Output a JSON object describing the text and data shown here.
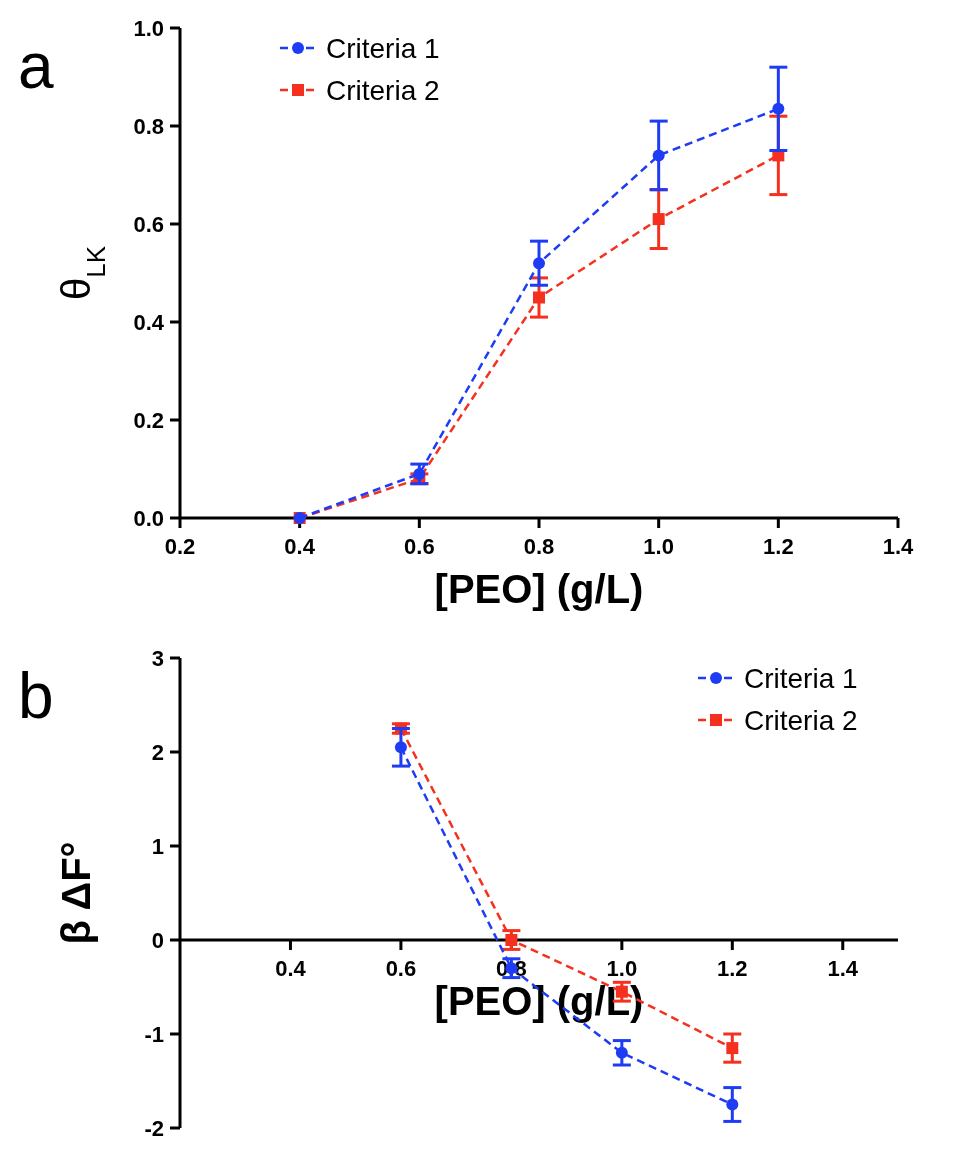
{
  "chart_data": [
    {
      "type": "line",
      "title": "a",
      "xlabel": "[PEO] (g/L)",
      "ylabel": "θ$_{LK}$",
      "x": [
        0.4,
        0.6,
        0.8,
        1.0,
        1.2
      ],
      "xlim": [
        0.2,
        1.4
      ],
      "xticks": [
        {
          "value": 0.2,
          "label": "0.2"
        },
        {
          "value": 0.4,
          "label": "0.4"
        },
        {
          "value": 0.6,
          "label": "0.6"
        },
        {
          "value": 0.8,
          "label": "0.8"
        },
        {
          "value": 1.0,
          "label": "1.0"
        },
        {
          "value": 1.2,
          "label": "1.2"
        },
        {
          "value": 1.4,
          "label": "1.4"
        }
      ],
      "ylim": [
        0,
        1.0
      ],
      "yticks": [
        {
          "value": 0,
          "label": "0.0"
        },
        {
          "value": 0.2,
          "label": "0.2"
        },
        {
          "value": 0.4,
          "label": "0.4"
        },
        {
          "value": 0.6,
          "label": "0.6"
        },
        {
          "value": 0.8,
          "label": "0.8"
        },
        {
          "value": 1.0,
          "label": "1.0"
        }
      ],
      "legend": "top left",
      "line_style": "dashed",
      "series": [
        {
          "name": "Criteria 1",
          "color": "#1f3cf5",
          "marker": "circle",
          "values": [
            0,
            0.09,
            0.52,
            0.74,
            0.835
          ],
          "errors": [
            null,
            0.02,
            0.045,
            0.07,
            0.085
          ]
        },
        {
          "name": "Criteria 2",
          "color": "#f5301f",
          "marker": "square",
          "values": [
            0,
            0.08,
            0.45,
            0.61,
            0.74
          ],
          "errors": [
            null,
            0.01,
            0.04,
            0.06,
            0.08
          ]
        }
      ]
    },
    {
      "type": "line",
      "title": "b",
      "xlabel": "[PEO] (g/L)",
      "ylabel": "β ΔF°",
      "x": [
        0.6,
        0.8,
        1.0,
        1.2
      ],
      "xlim": [
        0.2,
        1.5
      ],
      "xticks": [
        {
          "value": 0.4,
          "label": "0.4"
        },
        {
          "value": 0.6,
          "label": "0.6"
        },
        {
          "value": 0.8,
          "label": "0.8"
        },
        {
          "value": 1.0,
          "label": "1.0"
        },
        {
          "value": 1.2,
          "label": "1.2"
        },
        {
          "value": 1.4,
          "label": "1.4"
        }
      ],
      "ylim": [
        -2,
        3
      ],
      "yticks": [
        -2,
        -1,
        0,
        1,
        2,
        3
      ],
      "legend": "top right",
      "line_style": "dashed",
      "series": [
        {
          "name": "Criteria 1",
          "color": "#1f3cf5",
          "marker": "circle",
          "values": [
            2.05,
            -0.3,
            -1.2,
            -1.75
          ],
          "errors": [
            0.2,
            0.1,
            0.13,
            0.18
          ]
        },
        {
          "name": "Criteria 2",
          "color": "#f5301f",
          "marker": "square",
          "values": [
            2.25,
            0.0,
            -0.55,
            -1.15
          ],
          "errors": [
            0.05,
            0.1,
            0.1,
            0.15
          ]
        }
      ]
    }
  ]
}
